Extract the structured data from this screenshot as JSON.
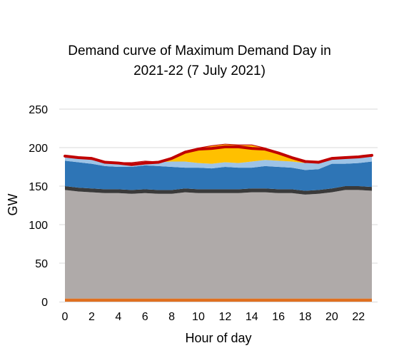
{
  "chart_data": {
    "type": "area",
    "title_line1": "Demand curve of Maximum Demand Day in",
    "title_line2": "2021-22 (7 July 2021)",
    "xlabel": "Hour of day",
    "ylabel": "GW",
    "xlim": [
      0,
      23
    ],
    "ylim": [
      0,
      250
    ],
    "xticks": [
      0,
      2,
      4,
      6,
      8,
      10,
      12,
      14,
      16,
      18,
      20,
      22
    ],
    "yticks": [
      0,
      50,
      100,
      150,
      200,
      250
    ],
    "grid": "horizontal",
    "x": [
      0,
      1,
      2,
      3,
      4,
      5,
      6,
      7,
      8,
      9,
      10,
      11,
      12,
      13,
      14,
      15,
      16,
      17,
      18,
      19,
      20,
      21,
      22,
      23
    ],
    "series": [
      {
        "color": "#E07020",
        "values": [
          4,
          4,
          4,
          4,
          4,
          4,
          4,
          4,
          4,
          4,
          4,
          4,
          4,
          4,
          4,
          4,
          4,
          4,
          4,
          4,
          4,
          4,
          4,
          4
        ]
      },
      {
        "color": "#AFAAA9",
        "values": [
          141,
          139,
          138,
          137,
          137,
          136,
          137,
          136,
          136,
          138,
          137,
          137,
          137,
          137,
          138,
          138,
          137,
          137,
          135,
          136,
          138,
          141,
          141,
          140
        ]
      },
      {
        "color": "#3A3A3A",
        "values": [
          5,
          5,
          5,
          5,
          5,
          5,
          5,
          5,
          5,
          5,
          5,
          5,
          5,
          5,
          5,
          5,
          5,
          5,
          5,
          5,
          5,
          5,
          5,
          5
        ]
      },
      {
        "color": "#2E75B6",
        "values": [
          33,
          33,
          32,
          30,
          29,
          30,
          31,
          31,
          30,
          27,
          28,
          27,
          29,
          28,
          27,
          29,
          29,
          28,
          27,
          27,
          32,
          29,
          30,
          33
        ]
      },
      {
        "color": "#9DC3E6",
        "values": [
          5,
          5,
          5,
          5,
          5,
          5,
          5,
          5,
          7,
          8,
          6,
          6,
          6,
          6,
          8,
          8,
          8,
          8,
          9,
          9,
          6,
          7,
          8,
          6
        ]
      },
      {
        "color": "#FFC000",
        "values": [
          0,
          0,
          0,
          0,
          0,
          0,
          0,
          0,
          5,
          13,
          19,
          23,
          23,
          23,
          21,
          15,
          9,
          4,
          0,
          0,
          0,
          0,
          0,
          0
        ]
      },
      {
        "color": "#C00000",
        "values": [
          1,
          1,
          1,
          1,
          1,
          1,
          1,
          1,
          1,
          1,
          1,
          1,
          1,
          1,
          1,
          1,
          1,
          1,
          1,
          1,
          1,
          1,
          1,
          1
        ]
      }
    ],
    "total_line": {
      "color": "#C00000",
      "values": [
        189,
        187,
        186,
        181,
        180,
        178,
        180,
        181,
        186,
        194,
        198,
        199,
        201,
        201,
        199,
        198,
        193,
        187,
        182,
        181,
        186,
        187,
        188,
        190
      ]
    }
  }
}
